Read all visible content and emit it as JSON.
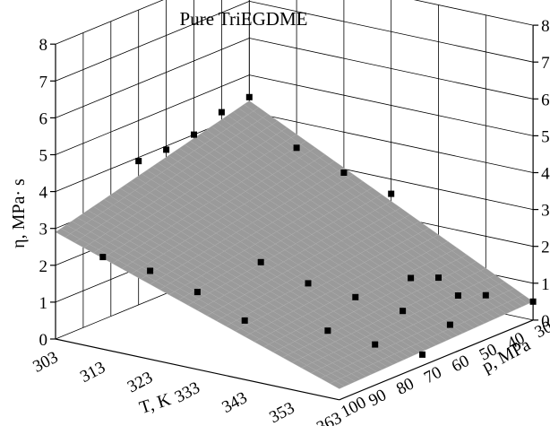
{
  "chart_data": {
    "type": "surface3d",
    "title": "Pure  TriEGDME",
    "axes": {
      "x": {
        "label": "T, K",
        "ticks": [
          "303",
          "313",
          "323",
          "333",
          "343",
          "353",
          "363"
        ],
        "range": [
          303,
          363
        ]
      },
      "y": {
        "label": "p, MPa",
        "ticks": [
          "30",
          "40",
          "50",
          "60",
          "70",
          "80",
          "90",
          "100"
        ],
        "range": [
          30,
          100
        ]
      },
      "z": {
        "label": "η, MPa· s",
        "ticks": [
          "0",
          "1",
          "2",
          "3",
          "4",
          "5",
          "6",
          "7",
          "8"
        ],
        "range": [
          0,
          8
        ]
      }
    },
    "grid": true,
    "surface": {
      "corners": [
        {
          "T": 303,
          "p": 30,
          "eta": 4.3
        },
        {
          "T": 363,
          "p": 30,
          "eta": 0.5
        },
        {
          "T": 363,
          "p": 100,
          "eta": 0.3
        },
        {
          "T": 303,
          "p": 100,
          "eta": 2.9
        }
      ],
      "color": "#9a9a9a"
    },
    "points": [
      {
        "T": 303,
        "p": 30,
        "eta": 4.4
      },
      {
        "T": 303,
        "p": 40,
        "eta": 4.3
      },
      {
        "T": 303,
        "p": 50,
        "eta": 4.0
      },
      {
        "T": 303,
        "p": 60,
        "eta": 3.9
      },
      {
        "T": 303,
        "p": 70,
        "eta": 3.9
      },
      {
        "T": 313,
        "p": 30,
        "eta": 3.3
      },
      {
        "T": 323,
        "p": 30,
        "eta": 2.9
      },
      {
        "T": 333,
        "p": 30,
        "eta": 2.6
      },
      {
        "T": 313,
        "p": 100,
        "eta": 2.5
      },
      {
        "T": 323,
        "p": 100,
        "eta": 2.4
      },
      {
        "T": 333,
        "p": 100,
        "eta": 2.1
      },
      {
        "T": 343,
        "p": 100,
        "eta": 1.6
      },
      {
        "T": 323,
        "p": 60,
        "eta": 1.4
      },
      {
        "T": 333,
        "p": 60,
        "eta": 1.1
      },
      {
        "T": 343,
        "p": 60,
        "eta": 1.0
      },
      {
        "T": 353,
        "p": 60,
        "eta": 0.9
      },
      {
        "T": 363,
        "p": 60,
        "eta": 0.8
      },
      {
        "T": 343,
        "p": 30,
        "eta": 0.6
      },
      {
        "T": 353,
        "p": 30,
        "eta": 0.4
      },
      {
        "T": 363,
        "p": 30,
        "eta": 0.5
      },
      {
        "T": 343,
        "p": 40,
        "eta": 0.9
      },
      {
        "T": 353,
        "p": 40,
        "eta": 0.7
      },
      {
        "T": 343,
        "p": 70,
        "eta": 0.4
      },
      {
        "T": 353,
        "p": 70,
        "eta": 0.3
      },
      {
        "T": 363,
        "p": 70,
        "eta": 0.3
      }
    ]
  }
}
